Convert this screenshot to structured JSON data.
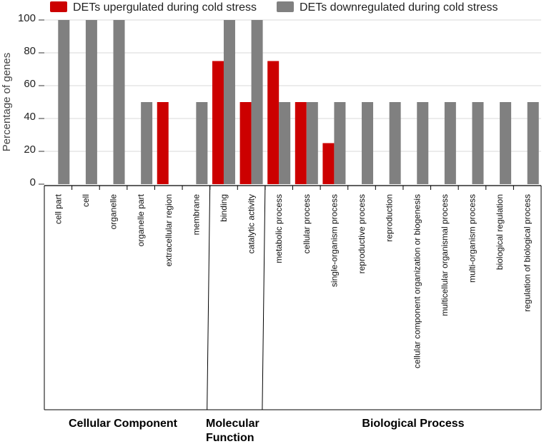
{
  "chart_data": {
    "type": "bar",
    "ylabel": "Percentage of genes",
    "ylim": [
      0,
      100
    ],
    "yticks": [
      0,
      20,
      40,
      60,
      80,
      100
    ],
    "grid": true,
    "legend_position": "top",
    "categories": [
      "cell part",
      "cell",
      "organelle",
      "organelle part",
      "extracellular region",
      "membrane",
      "binding",
      "catalytic activity",
      "metabolic process",
      "cellular process",
      "single-organism process",
      "reproductive process",
      "reproduction",
      "cellular component organization or biogenesis",
      "multicellular organismal process",
      "multi-organism process",
      "biological regulation",
      "regulation of biological process"
    ],
    "series": [
      {
        "name": "DETs upergulated during cold stress",
        "color": "#cc0000",
        "values": [
          0,
          0,
          0,
          0,
          50,
          0,
          75,
          50,
          75,
          50,
          25,
          0,
          0,
          0,
          0,
          0,
          0,
          0
        ]
      },
      {
        "name": "DETs downregulated during cold stress",
        "color": "#808080",
        "values": [
          100,
          100,
          100,
          50,
          0,
          50,
          100,
          100,
          50,
          50,
          50,
          50,
          50,
          50,
          50,
          50,
          50,
          50
        ]
      }
    ],
    "groups": [
      {
        "label": "Cellular Component",
        "start": 0,
        "end": 5
      },
      {
        "label": "Molecular Function",
        "start": 6,
        "end": 7
      },
      {
        "label": "Biological Process",
        "start": 8,
        "end": 17
      }
    ]
  }
}
